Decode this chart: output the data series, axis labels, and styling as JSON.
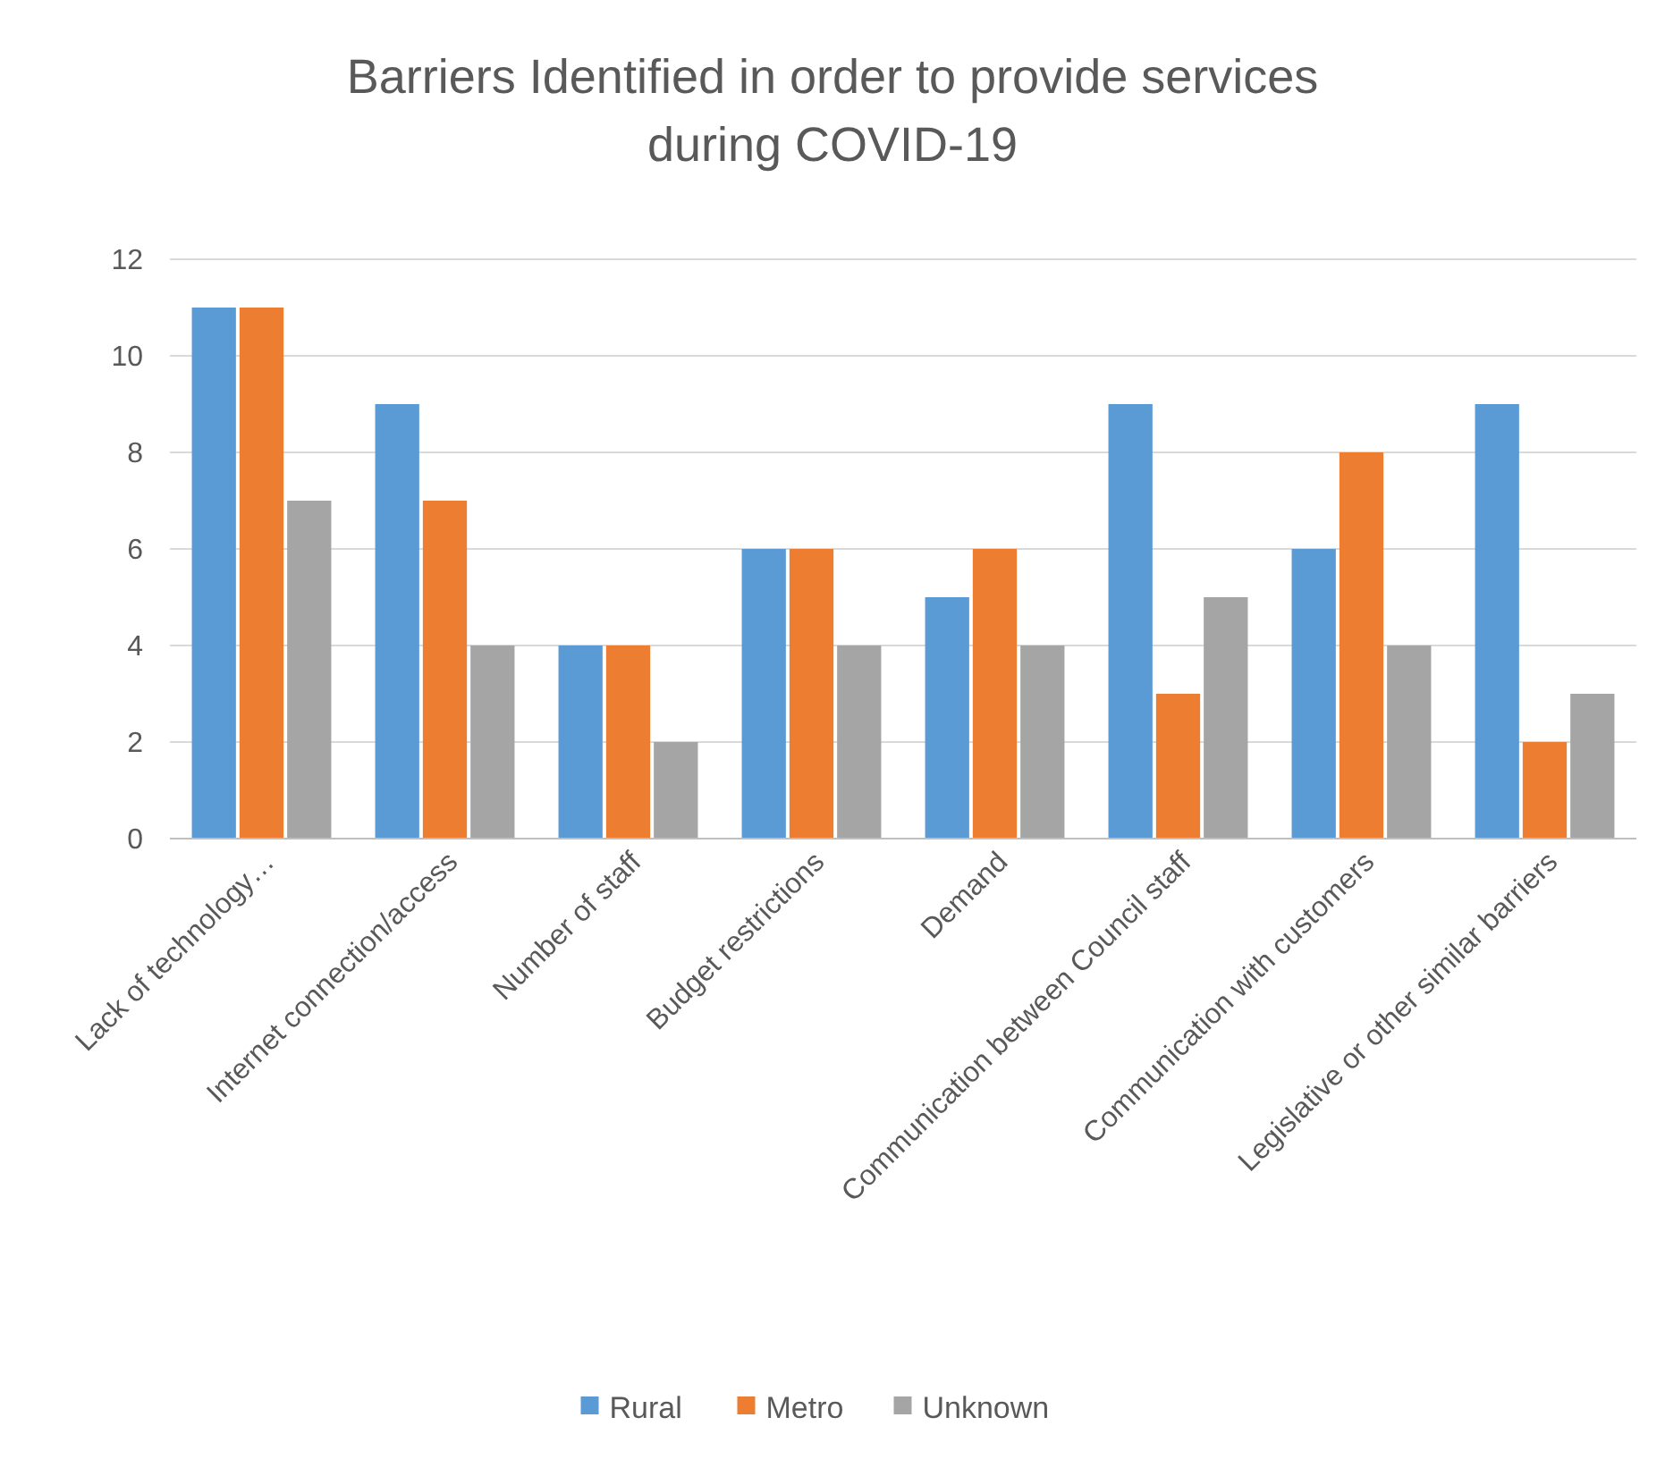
{
  "chart_data": {
    "type": "bar",
    "title": "Barriers Identified in order to provide services during COVID-19",
    "categories": [
      "Lack of technology…",
      "Internet connection/access",
      "Number of staff",
      "Budget restrictions",
      "Demand",
      "Communication between Council staff",
      "Communication with customers",
      "Legislative or other similar barriers"
    ],
    "series": [
      {
        "name": "Rural",
        "color": "#5b9bd5",
        "values": [
          11,
          9,
          4,
          6,
          5,
          9,
          6,
          9
        ]
      },
      {
        "name": "Metro",
        "color": "#ed7d31",
        "values": [
          11,
          7,
          4,
          6,
          6,
          3,
          8,
          2
        ]
      },
      {
        "name": "Unknown",
        "color": "#a5a5a5",
        "values": [
          7,
          4,
          2,
          4,
          4,
          5,
          4,
          3
        ]
      }
    ],
    "ylim": [
      0,
      12
    ],
    "yticks": [
      0,
      2,
      4,
      6,
      8,
      10,
      12
    ],
    "grid": "y",
    "legend": "bottom"
  }
}
